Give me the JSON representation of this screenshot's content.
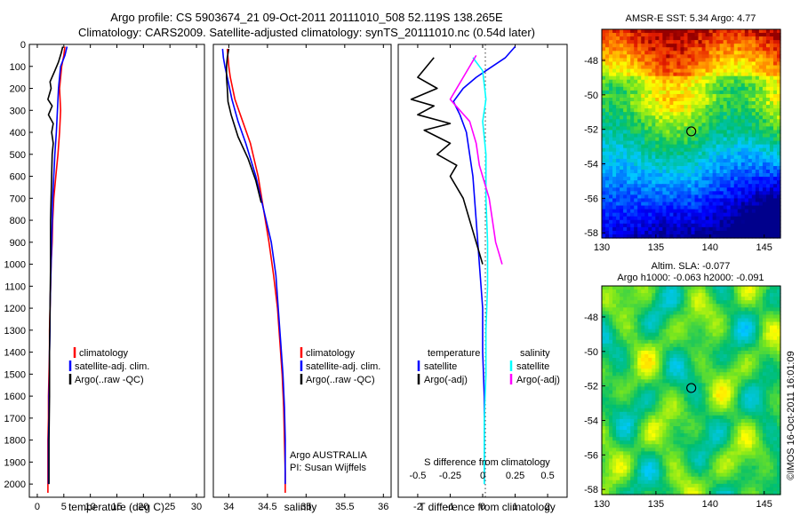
{
  "header": {
    "line1": "Argo profile: CS 5903674_21 09-Oct-2011 20111010_508 52.119S 138.265E",
    "line2": "Climatology: CARS2009. Satellite-adjusted climatology: synTS_20111010.nc (0.54d later)"
  },
  "colors": {
    "climatology": "#ff0000",
    "satellite": "#0000ff",
    "argo": "#000000",
    "sat_salinity": "#00ffff",
    "argo_salinity": "#ff00ff"
  },
  "depth_axis": {
    "ticks": [
      "0",
      "100",
      "200",
      "300",
      "400",
      "500",
      "600",
      "700",
      "800",
      "900",
      "1000",
      "1100",
      "1200",
      "1300",
      "1400",
      "1500",
      "1600",
      "1700",
      "1800",
      "1900",
      "2000"
    ],
    "range": [
      0,
      2060
    ]
  },
  "temperature_panel": {
    "xlabel": "temperature (deg C)",
    "xlim": [
      -1.5,
      31.5
    ],
    "xticks": [
      "0",
      "5",
      "10",
      "15",
      "20",
      "25",
      "30"
    ],
    "legend": [
      "climatology",
      "satellite-adj. clim.",
      "Argo(..raw -QC)"
    ],
    "chart_data": {
      "type": "line",
      "series": [
        {
          "name": "climatology",
          "color": "#ff0000",
          "points": [
            [
              5.2,
              10
            ],
            [
              5.0,
              50
            ],
            [
              4.6,
              100
            ],
            [
              4.2,
              200
            ],
            [
              4.4,
              300
            ],
            [
              4.2,
              400
            ],
            [
              3.9,
              500
            ],
            [
              3.5,
              600
            ],
            [
              3.1,
              700
            ],
            [
              2.9,
              800
            ],
            [
              2.8,
              900
            ],
            [
              2.6,
              1000
            ],
            [
              2.5,
              1100
            ],
            [
              2.4,
              1200
            ],
            [
              2.3,
              1300
            ],
            [
              2.3,
              1400
            ],
            [
              2.2,
              1500
            ],
            [
              2.1,
              1600
            ],
            [
              2.1,
              1700
            ],
            [
              2.0,
              1800
            ],
            [
              2.0,
              1900
            ],
            [
              2.0,
              2040
            ]
          ]
        },
        {
          "name": "satellite-adj. clim.",
          "color": "#0000ff",
          "points": [
            [
              5.6,
              10
            ],
            [
              5.2,
              50
            ],
            [
              4.4,
              100
            ],
            [
              4.0,
              200
            ],
            [
              3.8,
              300
            ],
            [
              3.6,
              400
            ],
            [
              3.3,
              500
            ],
            [
              3.1,
              600
            ],
            [
              2.9,
              700
            ],
            [
              2.8,
              800
            ],
            [
              2.7,
              900
            ],
            [
              2.6,
              1000
            ],
            [
              2.5,
              1100
            ],
            [
              2.4,
              1200
            ],
            [
              2.4,
              1300
            ],
            [
              2.3,
              1400
            ],
            [
              2.3,
              1500
            ],
            [
              2.2,
              1600
            ],
            [
              2.2,
              1700
            ],
            [
              2.1,
              1800
            ],
            [
              2.1,
              1900
            ],
            [
              2.1,
              2000
            ]
          ]
        },
        {
          "name": "Argo(..raw -QC)",
          "color": "#000000",
          "points": [
            [
              4.8,
              10
            ],
            [
              4.5,
              40
            ],
            [
              4.0,
              80
            ],
            [
              3.3,
              120
            ],
            [
              2.4,
              170
            ],
            [
              2.6,
              200
            ],
            [
              2.0,
              250
            ],
            [
              2.8,
              280
            ],
            [
              2.1,
              320
            ],
            [
              3.0,
              360
            ],
            [
              2.7,
              400
            ],
            [
              3.0,
              450
            ],
            [
              2.8,
              500
            ],
            [
              2.7,
              600
            ],
            [
              2.6,
              700
            ],
            [
              2.5,
              800
            ],
            [
              2.5,
              1000
            ],
            [
              2.4,
              1200
            ],
            [
              2.3,
              1400
            ],
            [
              2.3,
              1600
            ],
            [
              2.2,
              1800
            ],
            [
              2.2,
              2000
            ]
          ]
        }
      ]
    }
  },
  "salinity_panel": {
    "xlabel": "salinity",
    "xlim": [
      33.8,
      36.1
    ],
    "xticks": [
      "34",
      "34.5",
      "35",
      "35.5",
      "36"
    ],
    "legend": [
      "climatology",
      "satellite-adj. clim.",
      "Argo(..raw -QC)"
    ],
    "info": [
      "Argo AUSTRALIA",
      "PI: Susan Wijffels"
    ],
    "chart_data": {
      "type": "line",
      "series": [
        {
          "name": "climatology",
          "color": "#ff0000",
          "points": [
            [
              33.98,
              20
            ],
            [
              33.99,
              60
            ],
            [
              34.0,
              100
            ],
            [
              34.02,
              150
            ],
            [
              34.08,
              250
            ],
            [
              34.18,
              350
            ],
            [
              34.28,
              450
            ],
            [
              34.38,
              600
            ],
            [
              34.45,
              750
            ],
            [
              34.52,
              900
            ],
            [
              34.58,
              1050
            ],
            [
              34.63,
              1200
            ],
            [
              34.66,
              1350
            ],
            [
              34.69,
              1500
            ],
            [
              34.71,
              1650
            ],
            [
              34.72,
              1800
            ],
            [
              34.73,
              1950
            ],
            [
              34.73,
              2040
            ]
          ]
        },
        {
          "name": "satellite-adj. clim.",
          "color": "#0000ff",
          "points": [
            [
              33.92,
              20
            ],
            [
              33.93,
              60
            ],
            [
              33.95,
              100
            ],
            [
              33.98,
              150
            ],
            [
              34.04,
              250
            ],
            [
              34.12,
              350
            ],
            [
              34.22,
              450
            ],
            [
              34.35,
              600
            ],
            [
              34.45,
              750
            ],
            [
              34.55,
              900
            ],
            [
              34.61,
              1050
            ],
            [
              34.64,
              1200
            ],
            [
              34.67,
              1350
            ],
            [
              34.7,
              1500
            ],
            [
              34.72,
              1650
            ],
            [
              34.73,
              1800
            ],
            [
              34.73,
              1950
            ],
            [
              34.73,
              2000
            ]
          ]
        },
        {
          "name": "Argo(..raw -QC)",
          "color": "#000000",
          "points": [
            [
              34.0,
              20
            ],
            [
              33.98,
              60
            ],
            [
              33.97,
              100
            ],
            [
              33.97,
              150
            ],
            [
              33.98,
              200
            ],
            [
              33.99,
              260
            ],
            [
              34.03,
              320
            ],
            [
              34.12,
              420
            ],
            [
              34.25,
              520
            ],
            [
              34.35,
              620
            ],
            [
              34.42,
              720
            ]
          ]
        }
      ]
    }
  },
  "difference_panel": {
    "xlabel": "T difference from climatology",
    "xlabel_top": "S difference from climatology",
    "xlim": [
      -2.6,
      2.6
    ],
    "xticks": [
      "-2",
      "-1",
      "0",
      "1",
      "2"
    ],
    "s_ticks": [
      "-0.5",
      "-0.25",
      "0",
      "0.25",
      "0.5"
    ],
    "legend_temperature": {
      "title": "temperature",
      "items": [
        "satellite",
        "Argo(-adj)"
      ]
    },
    "legend_salinity": {
      "title": "salinity",
      "items": [
        "satellite",
        "Argo(-adj)"
      ]
    },
    "chart_data": {
      "type": "line",
      "series": [
        {
          "name": "satellite",
          "color": "#0000ff",
          "points": [
            [
              1.0,
              10
            ],
            [
              0.7,
              60
            ],
            [
              0.2,
              110
            ],
            [
              -0.2,
              150
            ],
            [
              -0.6,
              200
            ],
            [
              -0.9,
              260
            ],
            [
              -0.7,
              320
            ],
            [
              -0.5,
              400
            ],
            [
              -0.3,
              600
            ],
            [
              -0.2,
              800
            ],
            [
              -0.1,
              1000
            ],
            [
              0.0,
              1200
            ],
            [
              0.0,
              1400
            ],
            [
              0.05,
              1600
            ],
            [
              0.05,
              1800
            ],
            [
              0.05,
              2000
            ]
          ]
        },
        {
          "name": "Argo(-adj)",
          "color": "#000000",
          "points": [
            [
              -1.5,
              60
            ],
            [
              -2.0,
              150
            ],
            [
              -1.4,
              200
            ],
            [
              -2.2,
              250
            ],
            [
              -1.5,
              280
            ],
            [
              -2.0,
              320
            ],
            [
              -1.0,
              360
            ],
            [
              -1.8,
              390
            ],
            [
              -1.0,
              450
            ],
            [
              -1.4,
              500
            ],
            [
              -0.8,
              550
            ],
            [
              -1.0,
              600
            ],
            [
              -0.6,
              700
            ],
            [
              -0.4,
              800
            ],
            [
              -0.2,
              900
            ],
            [
              0.0,
              1000
            ]
          ]
        },
        {
          "name": "salinity satellite",
          "color": "#00ffff",
          "points": [
            [
              -0.3,
              60
            ],
            [
              0.0,
              120
            ],
            [
              0.1,
              250
            ],
            [
              0.0,
              350
            ],
            [
              0.1,
              500
            ],
            [
              0.1,
              700
            ],
            [
              0.15,
              900
            ],
            [
              0.15,
              1100
            ],
            [
              0.1,
              1300
            ],
            [
              0.1,
              1500
            ],
            [
              0.05,
              1700
            ],
            [
              0.05,
              1900
            ],
            [
              0.05,
              2000
            ]
          ]
        },
        {
          "name": "salinity Argo(-adj)",
          "color": "#ff00ff",
          "points": [
            [
              -0.2,
              50
            ],
            [
              -0.6,
              150
            ],
            [
              -1.0,
              250
            ],
            [
              -0.7,
              300
            ],
            [
              -0.4,
              350
            ],
            [
              -0.2,
              450
            ],
            [
              -0.1,
              550
            ],
            [
              0.2,
              700
            ],
            [
              0.3,
              800
            ],
            [
              0.4,
              900
            ],
            [
              0.5,
              950
            ],
            [
              0.6,
              1000
            ]
          ]
        }
      ]
    }
  },
  "sst_map": {
    "title": "AMSR-E SST: 5.34 Argo: 4.77",
    "xticks": [
      "130",
      "135",
      "140",
      "145"
    ],
    "yticks": [
      "-48",
      "-50",
      "-52",
      "-54",
      "-56",
      "-58"
    ],
    "chart_data": {
      "type": "heatmap",
      "xlim": [
        130,
        146.5
      ],
      "ylim": [
        -58.3,
        -46.2
      ],
      "marker": {
        "lon": 138.265,
        "lat": -52.119
      }
    }
  },
  "sla_map": {
    "title1": "Altim. SLA: -0.077",
    "title2": "Argo h1000: -0.063 h2000: -0.091",
    "xticks": [
      "130",
      "135",
      "140",
      "145"
    ],
    "yticks": [
      "-48",
      "-50",
      "-52",
      "-54",
      "-56",
      "-58"
    ],
    "chart_data": {
      "type": "heatmap",
      "xlim": [
        130,
        146.5
      ],
      "ylim": [
        -58.3,
        -46.2
      ],
      "marker": {
        "lon": 138.265,
        "lat": -52.119
      }
    }
  },
  "credit": "©IMOS 16-Oct-2011 16:01:09"
}
